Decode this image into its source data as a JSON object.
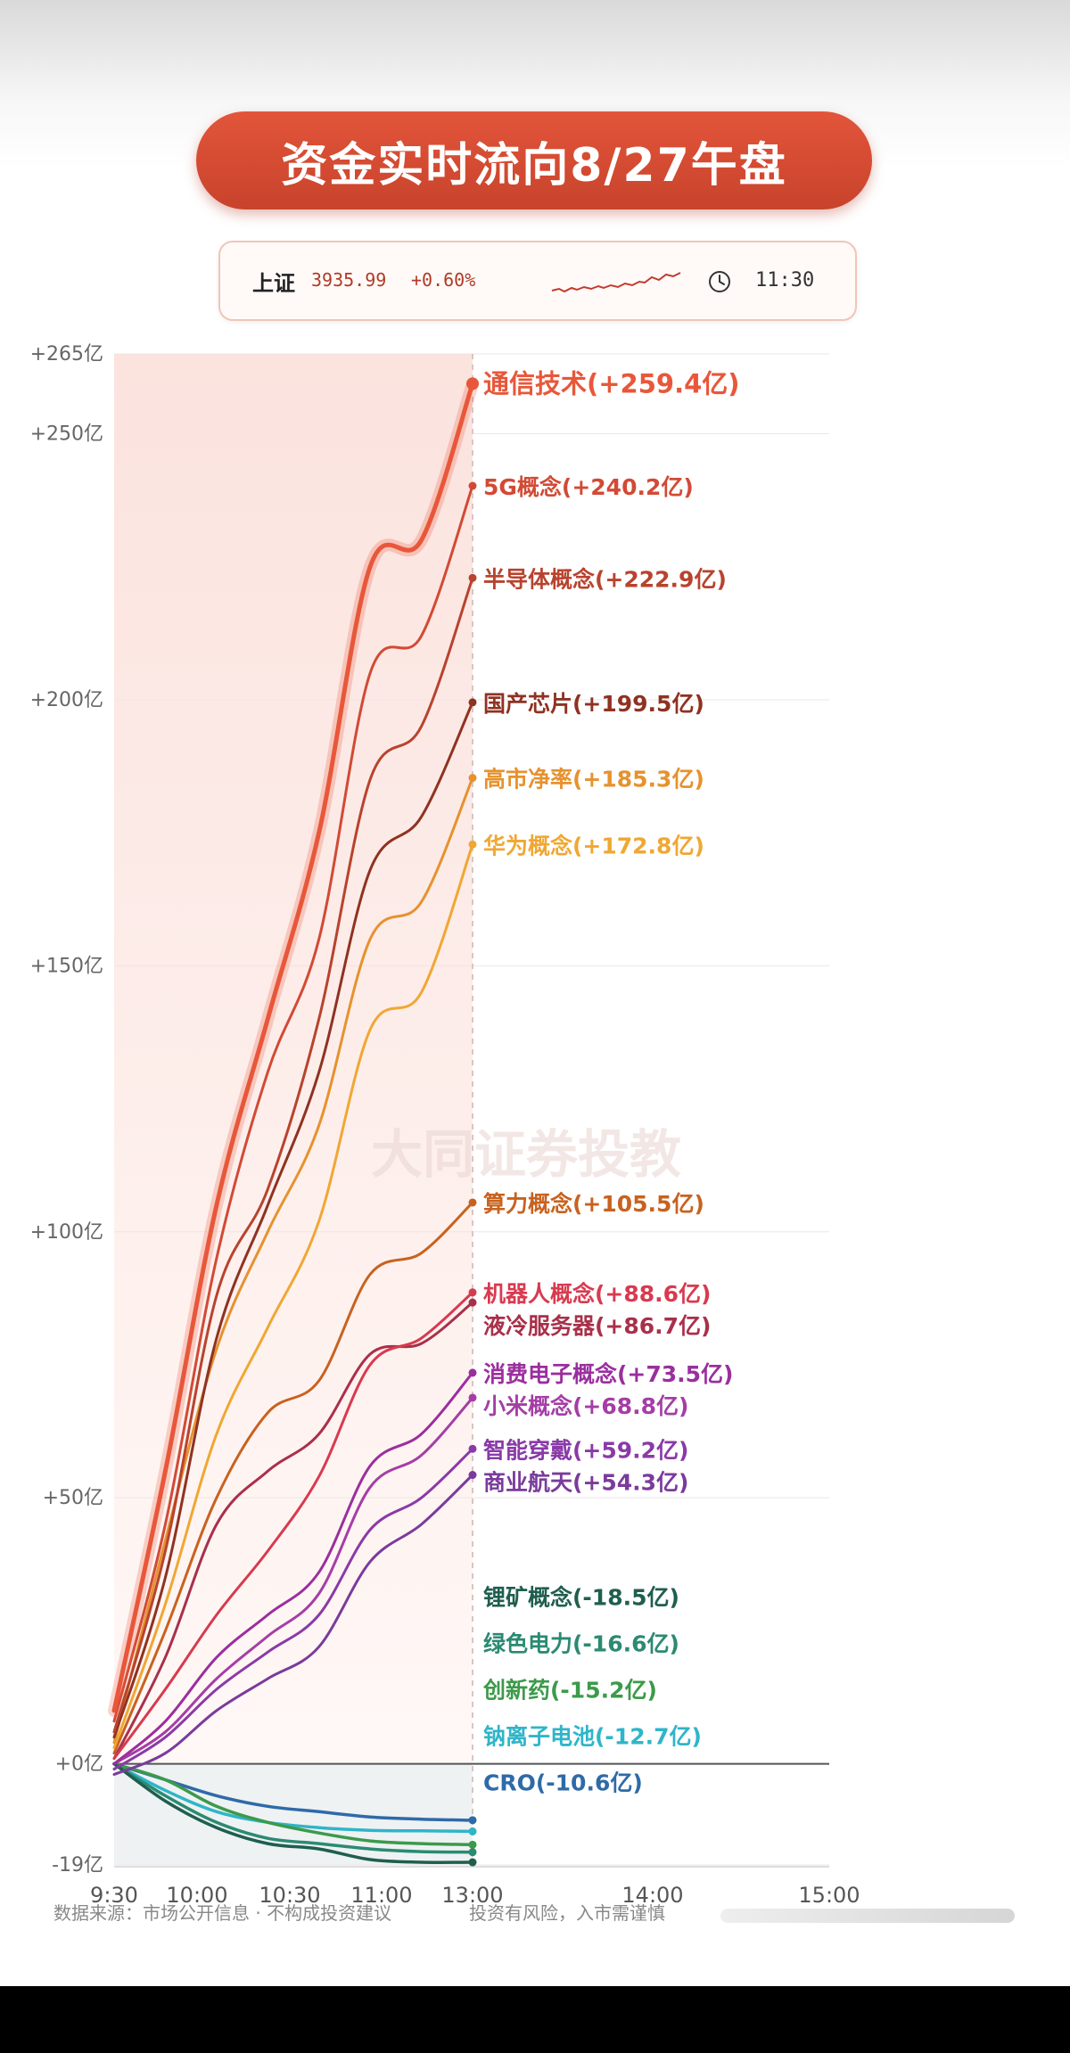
{
  "header": {
    "title": "资金实时流向8/27午盘"
  },
  "index": {
    "name": "上证",
    "value": "3935.99",
    "change": "+0.60%",
    "time": "11:30",
    "icon": "clock-icon"
  },
  "watermark": "大同证券投教",
  "footer": {
    "source": "数据来源：市场公开信息 · 不构成投资建议",
    "risk": "投资有风险，入市需谨慎"
  },
  "colors": {
    "accent": "#d84c33",
    "positive_zone": "#fdecea",
    "zero_line": "#555555"
  },
  "chart_data": {
    "type": "line",
    "title": "资金实时流向8/27午盘",
    "xlabel": "",
    "ylabel": "",
    "x_ticks": [
      "9:30",
      "10:00",
      "10:30",
      "11:00",
      "13:00",
      "14:00",
      "15:00"
    ],
    "y_ticks": [
      "+265亿",
      "+250亿",
      "+200亿",
      "+150亿",
      "+100亿",
      "+50亿",
      "+0亿",
      "-19亿"
    ],
    "y_tick_values": [
      265,
      250,
      200,
      150,
      100,
      50,
      0,
      -19
    ],
    "ylim": [
      -19,
      265
    ],
    "grid": true,
    "current_time": "13:00",
    "series": [
      {
        "name": "通信技术",
        "label": "通信技术(+259.4亿)",
        "color": "#e8573a",
        "final": 259.4,
        "values": [
          10,
          55,
          105,
          140,
          175,
          225,
          230,
          259.4
        ]
      },
      {
        "name": "5G概念",
        "label": "5G概念(+240.2亿)",
        "color": "#d24a35",
        "final": 240.2,
        "values": [
          8,
          45,
          95,
          130,
          155,
          205,
          212,
          240.2
        ]
      },
      {
        "name": "半导体概念",
        "label": "半导体概念(+222.9亿)",
        "color": "#b8432e",
        "final": 222.9,
        "values": [
          6,
          40,
          88,
          108,
          140,
          185,
          195,
          222.9
        ]
      },
      {
        "name": "国产芯片",
        "label": "国产芯片(+199.5亿)",
        "color": "#8f3222",
        "final": 199.5,
        "values": [
          5,
          35,
          80,
          105,
          130,
          168,
          178,
          199.5
        ]
      },
      {
        "name": "高市净率",
        "label": "高市净率(+185.3亿)",
        "color": "#e6922e",
        "final": 185.3,
        "values": [
          4,
          42,
          78,
          100,
          120,
          155,
          162,
          185.3
        ]
      },
      {
        "name": "华为概念",
        "label": "华为概念(+172.8亿)",
        "color": "#f0a733",
        "final": 172.8,
        "values": [
          3,
          30,
          62,
          82,
          102,
          138,
          145,
          172.8
        ]
      },
      {
        "name": "算力概念",
        "label": "算力概念(+105.5亿)",
        "color": "#c8621f",
        "final": 105.5,
        "values": [
          2,
          25,
          50,
          66,
          72,
          92,
          96,
          105.5
        ]
      },
      {
        "name": "机器人概念",
        "label": "机器人概念(+88.6亿)",
        "color": "#d83a4f",
        "final": 88.6,
        "values": [
          1,
          14,
          28,
          40,
          54,
          75,
          80,
          88.6
        ]
      },
      {
        "name": "液冷服务器",
        "label": "液冷服务器(+86.7亿)",
        "color": "#a9304a",
        "final": 86.7,
        "values": [
          1,
          20,
          45,
          55,
          62,
          77,
          79,
          86.7
        ]
      },
      {
        "name": "消费电子概念",
        "label": "消费电子概念(+73.5亿)",
        "color": "#9a2f9e",
        "final": 73.5,
        "values": [
          0,
          8,
          20,
          28,
          36,
          56,
          62,
          73.5
        ]
      },
      {
        "name": "小米概念",
        "label": "小米概念(+68.8亿)",
        "color": "#a43ea6",
        "final": 68.8,
        "values": [
          0,
          6,
          16,
          24,
          32,
          52,
          58,
          68.8
        ]
      },
      {
        "name": "智能穿戴",
        "label": "智能穿戴(+59.2亿)",
        "color": "#8a3aa8",
        "final": 59.2,
        "values": [
          -1,
          5,
          14,
          21,
          28,
          44,
          50,
          59.2
        ]
      },
      {
        "name": "商业航天",
        "label": "商业航天(+54.3亿)",
        "color": "#7a3b9c",
        "final": 54.3,
        "values": [
          -2,
          2,
          10,
          16,
          22,
          38,
          45,
          54.3
        ]
      },
      {
        "name": "锂矿概念",
        "label": "锂矿概念(-18.5亿)",
        "color": "#1f5e4e",
        "final": -18.5,
        "values": [
          0,
          -7,
          -12,
          -15,
          -16,
          -18,
          -18.5,
          -18.5
        ]
      },
      {
        "name": "绿色电力",
        "label": "绿色电力(-16.6亿)",
        "color": "#2b8a72",
        "final": -16.6,
        "values": [
          0,
          -6,
          -11,
          -14,
          -15,
          -16,
          -16.5,
          -16.6
        ]
      },
      {
        "name": "创新药",
        "label": "创新药(-15.2亿)",
        "color": "#3c9a4a",
        "final": -15.2,
        "values": [
          0,
          -3,
          -8,
          -11,
          -13,
          -14.5,
          -15,
          -15.2
        ]
      },
      {
        "name": "钠离子电池",
        "label": "钠离子电池(-12.7亿)",
        "color": "#2fb5c9",
        "final": -12.7,
        "values": [
          0,
          -5,
          -9,
          -11,
          -12,
          -12.5,
          -12.6,
          -12.7
        ]
      },
      {
        "name": "CRO",
        "label": "CRO(-10.6亿)",
        "color": "#2f6aa8",
        "final": -10.6,
        "values": [
          0,
          -3,
          -6,
          -8,
          -9,
          -10,
          -10.4,
          -10.6
        ]
      }
    ]
  }
}
